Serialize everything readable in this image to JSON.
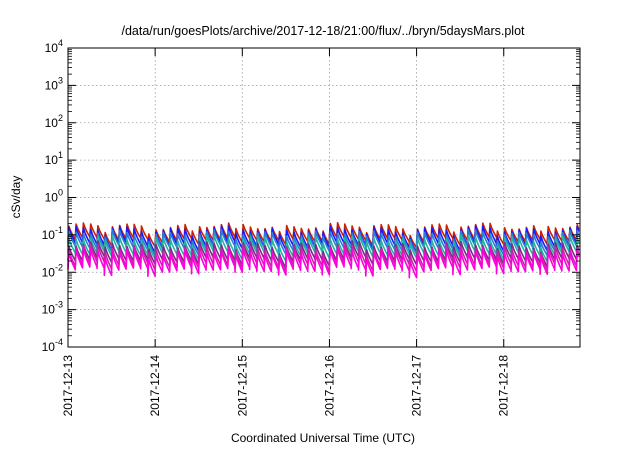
{
  "chart_data": {
    "type": "line",
    "title": "/data/run/goesPlots/archive/2017-12-18/21:00/flux/../bryn/5daysMars.plot",
    "xlabel": "Coordinated Universal Time (UTC)",
    "ylabel": "cSv/day",
    "yscale": "log",
    "ylim": [
      0.0001,
      10000
    ],
    "xlim": [
      "2017-12-13",
      "2017-12-18 21:00"
    ],
    "grid": true,
    "x_ticks": [
      "2017-12-13",
      "2017-12-14",
      "2017-12-15",
      "2017-12-16",
      "2017-12-17",
      "2017-12-18"
    ],
    "y_ticks": [
      {
        "base": "10",
        "exp": "4",
        "value": 10000
      },
      {
        "base": "10",
        "exp": "3",
        "value": 1000
      },
      {
        "base": "10",
        "exp": "2",
        "value": 100
      },
      {
        "base": "10",
        "exp": "1",
        "value": 10
      },
      {
        "base": "10",
        "exp": "0",
        "value": 1
      },
      {
        "base": "10",
        "exp": "-1",
        "value": 0.1
      },
      {
        "base": "10",
        "exp": "-2",
        "value": 0.01
      },
      {
        "base": "10",
        "exp": "-3",
        "value": 0.001
      },
      {
        "base": "10",
        "exp": "-4",
        "value": 0.0001
      }
    ],
    "pattern": {
      "description": "sawtooth, one cycle per ~2 hours (12 per day); rises sharply then decays",
      "cycles_per_day": 12
    },
    "series": [
      {
        "color": "#cc2200",
        "peak": 0.17,
        "trough": 0.075
      },
      {
        "color": "#1a1aff",
        "peak": 0.14,
        "trough": 0.055
      },
      {
        "color": "#2a7fd4",
        "peak": 0.11,
        "trough": 0.045
      },
      {
        "color": "#22b5a0",
        "peak": 0.08,
        "trough": 0.032
      },
      {
        "color": "#7a2a8a",
        "peak": 0.055,
        "trough": 0.022
      },
      {
        "color": "#cc22aa",
        "peak": 0.045,
        "trough": 0.016
      },
      {
        "color": "#ff00dd",
        "peak": 0.035,
        "trough": 0.012
      }
    ]
  }
}
